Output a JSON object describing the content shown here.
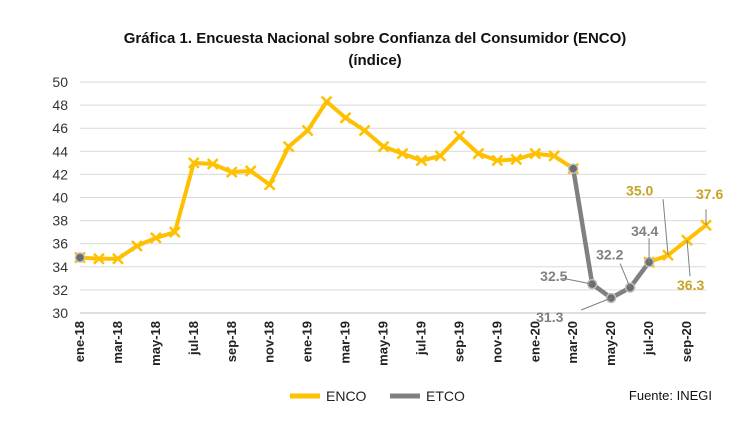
{
  "chart_data": {
    "type": "line",
    "title": "Gráfica 1. Encuesta Nacional sobre Confianza del Consumidor (ENCO)",
    "subtitle": "(índice)",
    "source": "Fuente: INEGI",
    "ylim": [
      30,
      50
    ],
    "yticks": [
      "30",
      "32",
      "34",
      "36",
      "38",
      "40",
      "42",
      "44",
      "46",
      "48",
      "50"
    ],
    "grid": true,
    "legend_position": "bottom",
    "x": [
      "ene-18",
      "feb-18",
      "mar-18",
      "abr-18",
      "may-18",
      "jun-18",
      "jul-18",
      "ago-18",
      "sep-18",
      "oct-18",
      "nov-18",
      "dic-18",
      "ene-19",
      "feb-19",
      "mar-19",
      "abr-19",
      "may-19",
      "jun-19",
      "jul-19",
      "ago-19",
      "sep-19",
      "oct-19",
      "nov-19",
      "dic-19",
      "ene-20",
      "feb-20",
      "mar-20",
      "abr-20",
      "may-20",
      "jun-20",
      "jul-20",
      "ago-20",
      "sep-20",
      "oct-20"
    ],
    "xtick_labels": [
      "ene-18",
      "mar-18",
      "may-18",
      "jul-18",
      "sep-18",
      "nov-18",
      "ene-19",
      "mar-19",
      "may-19",
      "jul-19",
      "sep-19",
      "nov-19",
      "ene-20",
      "mar-20",
      "may-20",
      "jul-20",
      "sep-20"
    ],
    "series": [
      {
        "name": "ENCO",
        "color": "#FFC000",
        "values": [
          34.8,
          34.7,
          34.7,
          35.8,
          36.5,
          37.0,
          43.0,
          42.9,
          42.2,
          42.3,
          41.1,
          44.4,
          45.8,
          48.3,
          46.9,
          45.8,
          44.4,
          43.8,
          43.2,
          43.6,
          45.3,
          43.8,
          43.2,
          43.3,
          43.8,
          43.6,
          42.5,
          null,
          null,
          null,
          34.4,
          35.0,
          36.3,
          37.6
        ]
      },
      {
        "name": "ETCO",
        "color": "#808080",
        "values": [
          34.8,
          null,
          null,
          null,
          null,
          null,
          null,
          null,
          null,
          null,
          null,
          null,
          null,
          null,
          null,
          null,
          null,
          null,
          null,
          null,
          null,
          null,
          null,
          null,
          null,
          null,
          42.5,
          32.5,
          31.3,
          32.2,
          34.4,
          null,
          null,
          null
        ]
      }
    ],
    "annotations": [
      {
        "text": "32.5",
        "series": "ETCO",
        "x": "abr-20",
        "y": 32.5,
        "color": "#808080"
      },
      {
        "text": "31.3",
        "series": "ETCO",
        "x": "may-20",
        "y": 31.3,
        "color": "#808080"
      },
      {
        "text": "32.2",
        "series": "ETCO",
        "x": "jun-20",
        "y": 32.2,
        "color": "#808080"
      },
      {
        "text": "34.4",
        "series": "ETCO",
        "x": "jul-20",
        "y": 34.4,
        "color": "#808080"
      },
      {
        "text": "35.0",
        "series": "ENCO",
        "x": "ago-20",
        "y": 35.0,
        "color": "#C9A227"
      },
      {
        "text": "36.3",
        "series": "ENCO",
        "x": "sep-20",
        "y": 36.3,
        "color": "#C9A227"
      },
      {
        "text": "37.6",
        "series": "ENCO",
        "x": "oct-20",
        "y": 37.6,
        "color": "#C9A227"
      }
    ]
  }
}
